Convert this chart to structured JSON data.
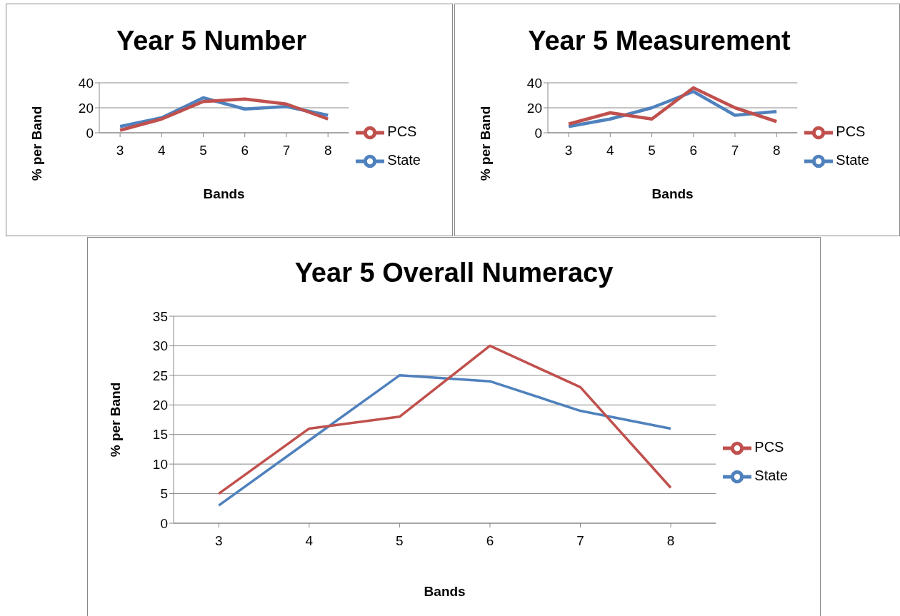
{
  "chart_data": [
    {
      "type": "line",
      "title": "Year 5 Number",
      "xlabel": "Bands",
      "ylabel": "% per Band",
      "categories": [
        "3",
        "4",
        "5",
        "6",
        "7",
        "8"
      ],
      "series": [
        {
          "name": "State",
          "color": "#4f81bd",
          "values": [
            5,
            12,
            28,
            19,
            21,
            14
          ]
        },
        {
          "name": "PCS",
          "color": "#c0504d",
          "values": [
            2,
            11,
            25,
            27,
            23,
            11
          ]
        }
      ],
      "ylim": [
        0,
        40
      ],
      "yticks": [
        0,
        20,
        40
      ],
      "grid": "y",
      "legend": "right",
      "marker": "none"
    },
    {
      "type": "line",
      "title": "Year 5 Measurement",
      "xlabel": "Bands",
      "ylabel": "% per Band",
      "categories": [
        "3",
        "4",
        "5",
        "6",
        "7",
        "8"
      ],
      "series": [
        {
          "name": "State",
          "color": "#4f81bd",
          "values": [
            5,
            11,
            20,
            33,
            14,
            17
          ]
        },
        {
          "name": "PCS",
          "color": "#c0504d",
          "values": [
            7,
            16,
            11,
            36,
            20,
            9
          ]
        }
      ],
      "ylim": [
        0,
        40
      ],
      "yticks": [
        0,
        20,
        40
      ],
      "grid": "y",
      "legend": "right",
      "marker": "none"
    },
    {
      "type": "line",
      "title": "Year 5 Overall Numeracy",
      "xlabel": "Bands",
      "ylabel": "% per Band",
      "categories": [
        "3",
        "4",
        "5",
        "6",
        "7",
        "8"
      ],
      "series": [
        {
          "name": "State",
          "color": "#4f81bd",
          "values": [
            3,
            14,
            25,
            24,
            19,
            16
          ]
        },
        {
          "name": "PCS",
          "color": "#c0504d",
          "values": [
            5,
            16,
            18,
            30,
            23,
            6
          ]
        }
      ],
      "ylim": [
        0,
        35
      ],
      "yticks": [
        0,
        5,
        10,
        15,
        20,
        25,
        30,
        35
      ],
      "grid": "y",
      "legend": "right",
      "marker": "none"
    }
  ]
}
